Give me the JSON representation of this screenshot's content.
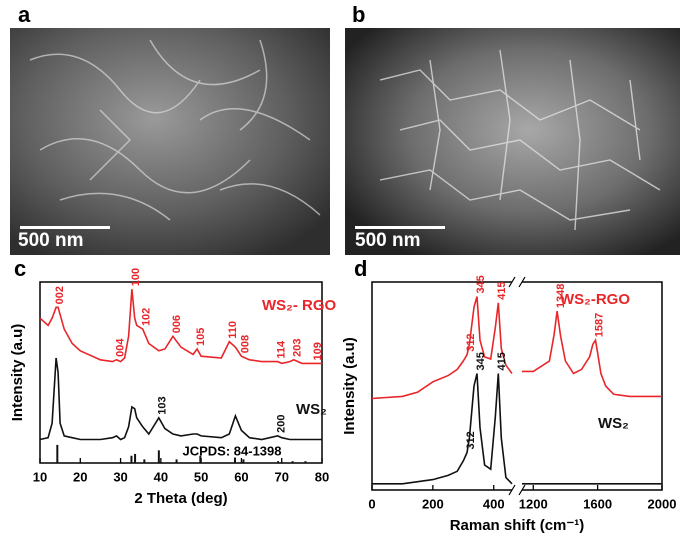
{
  "panels": [
    {
      "label": "a",
      "scale_bar": "500 nm"
    },
    {
      "label": "b",
      "scale_bar": "500 nm"
    },
    {
      "label": "c"
    },
    {
      "label": "d"
    }
  ],
  "chart_data": [
    {
      "type": "line",
      "xlabel": "2 Theta (deg)",
      "ylabel": "Intensity (a.u)",
      "x": [
        10,
        12,
        13,
        14,
        14.5,
        15,
        16,
        18,
        20,
        25,
        28,
        29,
        30,
        31,
        32,
        32.8,
        33.5,
        34,
        35.5,
        37,
        39.5,
        41,
        43,
        45,
        48,
        49,
        50,
        55,
        57,
        58.5,
        60,
        62,
        65,
        69,
        70,
        72,
        73,
        75,
        78,
        80
      ],
      "xlim": [
        10,
        80
      ],
      "xticks": [
        10,
        20,
        30,
        40,
        50,
        60,
        70,
        80
      ],
      "ylim": [
        0,
        100
      ],
      "series": [
        {
          "name": "WS₂- RGO",
          "color": "#e8262a",
          "values": [
            80,
            76,
            80,
            86,
            86,
            82,
            74,
            66,
            62,
            57,
            56,
            57,
            56,
            58,
            70,
            96,
            80,
            76,
            74,
            66,
            62,
            63,
            70,
            64,
            60,
            63,
            59,
            58,
            67,
            64,
            59,
            57,
            56,
            56,
            55,
            56,
            57,
            55,
            55,
            55
          ]
        },
        {
          "name": "WS₂",
          "color": "#111111",
          "values": [
            13,
            14,
            22,
            58,
            50,
            22,
            15,
            14,
            13,
            13,
            14,
            15,
            13,
            14,
            20,
            31,
            30,
            25,
            20,
            16,
            25,
            19,
            16,
            15,
            16,
            16,
            15,
            14,
            16,
            26,
            18,
            14,
            13,
            15,
            14,
            13,
            13,
            13,
            13,
            13
          ]
        }
      ],
      "annotations": [
        {
          "text": "002",
          "x": 14,
          "series": 0
        },
        {
          "text": "004",
          "x": 29,
          "series": 0
        },
        {
          "text": "100",
          "x": 32.8,
          "series": 0
        },
        {
          "text": "102",
          "x": 35.5,
          "series": 0
        },
        {
          "text": "006",
          "x": 43,
          "series": 0
        },
        {
          "text": "105",
          "x": 49,
          "series": 0
        },
        {
          "text": "110",
          "x": 57,
          "series": 0
        },
        {
          "text": "008",
          "x": 60,
          "series": 0
        },
        {
          "text": "114",
          "x": 69,
          "series": 0
        },
        {
          "text": "203",
          "x": 73,
          "series": 0
        },
        {
          "text": "109",
          "x": 78,
          "series": 0
        },
        {
          "text": "103",
          "x": 39.5,
          "series": 1
        },
        {
          "text": "200",
          "x": 69,
          "series": 1
        }
      ],
      "reference": {
        "label": "JCPDS: 84-1398",
        "color": "#111111",
        "x": [
          14.3,
          32.7,
          33.6,
          35.9,
          39.5,
          43.9,
          49.8,
          58.4,
          60.5,
          69.1,
          72.7,
          75.9
        ],
        "values": [
          10,
          4,
          5,
          2,
          7,
          2,
          4,
          3,
          2,
          1,
          1,
          1
        ]
      }
    },
    {
      "type": "line",
      "xlabel": "Raman shift (cm⁻¹)",
      "ylabel": "Intensity (a.u)",
      "x": [
        0,
        100,
        150,
        200,
        250,
        280,
        300,
        312,
        320,
        335,
        345,
        355,
        370,
        390,
        405,
        415,
        425,
        440,
        460,
        800,
        1130,
        1200,
        1300,
        1330,
        1348,
        1370,
        1400,
        1450,
        1500,
        1550,
        1570,
        1587,
        1600,
        1620,
        1650,
        1700,
        1800,
        2000
      ],
      "xlim": [
        0,
        2000
      ],
      "xbreak": [
        460,
        1130
      ],
      "xticks": [
        0,
        200,
        400,
        1200,
        1600,
        2000
      ],
      "ylim": [
        0,
        100
      ],
      "series": [
        {
          "name": "WS₂-RGO",
          "color": "#e8262a",
          "values": [
            44,
            45,
            47,
            52,
            55,
            58,
            62,
            65,
            70,
            88,
            93,
            72,
            64,
            63,
            78,
            90,
            68,
            60,
            56,
            null,
            57,
            57,
            62,
            75,
            86,
            74,
            62,
            56,
            58,
            64,
            70,
            72,
            66,
            56,
            50,
            46,
            45,
            45
          ]
        },
        {
          "name": "WS₂",
          "color": "#111111",
          "values": [
            3,
            3,
            4,
            5,
            7,
            9,
            14,
            18,
            25,
            50,
            56,
            30,
            12,
            10,
            35,
            56,
            25,
            6,
            3,
            null,
            3,
            3,
            3,
            3,
            3,
            3,
            3,
            3,
            3,
            3,
            3,
            3,
            3,
            3,
            3,
            3,
            3,
            3
          ]
        }
      ],
      "annotations": [
        {
          "text": "312",
          "x": 312,
          "series": 0
        },
        {
          "text": "345",
          "x": 345,
          "series": 0
        },
        {
          "text": "415",
          "x": 415,
          "series": 0
        },
        {
          "text": "1348",
          "x": 1348,
          "series": 0
        },
        {
          "text": "1587",
          "x": 1587,
          "series": 0
        },
        {
          "text": "312",
          "x": 312,
          "series": 1
        },
        {
          "text": "345",
          "x": 345,
          "series": 1
        },
        {
          "text": "415",
          "x": 415,
          "series": 1
        }
      ]
    }
  ]
}
